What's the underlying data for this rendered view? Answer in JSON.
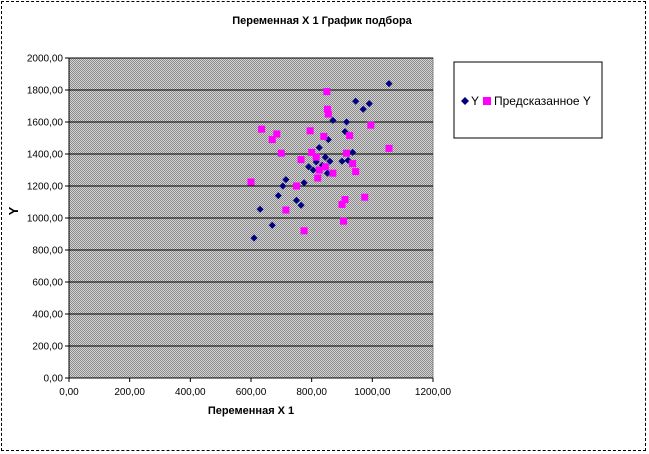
{
  "chart_data": {
    "type": "scatter",
    "title": "Переменная X 1 График подбора",
    "xlabel": "Переменная X 1",
    "ylabel": "Y",
    "xlim": [
      0,
      1200
    ],
    "ylim": [
      0,
      2000
    ],
    "x_ticks": [
      "0,00",
      "200,00",
      "400,00",
      "600,00",
      "800,00",
      "1000,00",
      "1200,00"
    ],
    "y_ticks": [
      "0,00",
      "200,00",
      "400,00",
      "600,00",
      "800,00",
      "1000,00",
      "1200,00",
      "1400,00",
      "1600,00",
      "1800,00",
      "2000,00"
    ],
    "grid": true,
    "legend_position": "right",
    "series": [
      {
        "name": "Y",
        "color": "#000080",
        "marker": "diamond",
        "points": [
          [
            610,
            875
          ],
          [
            630,
            1055
          ],
          [
            670,
            955
          ],
          [
            690,
            1140
          ],
          [
            705,
            1200
          ],
          [
            715,
            1240
          ],
          [
            750,
            1110
          ],
          [
            765,
            1080
          ],
          [
            775,
            1220
          ],
          [
            790,
            1320
          ],
          [
            805,
            1300
          ],
          [
            815,
            1350
          ],
          [
            825,
            1440
          ],
          [
            835,
            1330
          ],
          [
            845,
            1380
          ],
          [
            852,
            1280
          ],
          [
            855,
            1490
          ],
          [
            860,
            1355
          ],
          [
            870,
            1610
          ],
          [
            900,
            1355
          ],
          [
            910,
            1540
          ],
          [
            915,
            1600
          ],
          [
            920,
            1360
          ],
          [
            935,
            1410
          ],
          [
            945,
            1730
          ],
          [
            970,
            1680
          ],
          [
            990,
            1715
          ],
          [
            1055,
            1840
          ]
        ]
      },
      {
        "name": "Предсказанное Y",
        "color": "#ff00ff",
        "marker": "square",
        "points": [
          [
            600,
            1225
          ],
          [
            635,
            1555
          ],
          [
            670,
            1490
          ],
          [
            685,
            1525
          ],
          [
            700,
            1405
          ],
          [
            715,
            1050
          ],
          [
            750,
            1200
          ],
          [
            765,
            1365
          ],
          [
            775,
            920
          ],
          [
            795,
            1545
          ],
          [
            800,
            1410
          ],
          [
            815,
            1380
          ],
          [
            820,
            1250
          ],
          [
            825,
            1300
          ],
          [
            840,
            1510
          ],
          [
            845,
            1320
          ],
          [
            850,
            1790
          ],
          [
            852,
            1680
          ],
          [
            855,
            1650
          ],
          [
            870,
            1280
          ],
          [
            900,
            1085
          ],
          [
            905,
            980
          ],
          [
            910,
            1115
          ],
          [
            915,
            1405
          ],
          [
            925,
            1515
          ],
          [
            935,
            1340
          ],
          [
            945,
            1290
          ],
          [
            975,
            1130
          ],
          [
            995,
            1580
          ],
          [
            1055,
            1435
          ]
        ]
      }
    ]
  }
}
